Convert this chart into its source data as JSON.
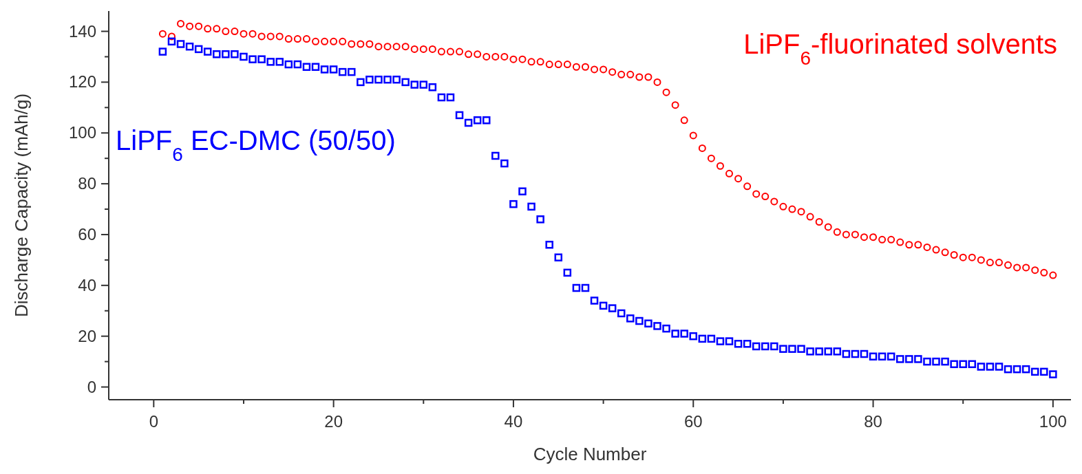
{
  "chart_data": {
    "type": "scatter",
    "xlabel": "Cycle Number",
    "ylabel": "Discharge Capacity (mAh/g)",
    "x": [
      1,
      2,
      3,
      4,
      5,
      6,
      7,
      8,
      9,
      10,
      11,
      12,
      13,
      14,
      15,
      16,
      17,
      18,
      19,
      20,
      21,
      22,
      23,
      24,
      25,
      26,
      27,
      28,
      29,
      30,
      31,
      32,
      33,
      34,
      35,
      36,
      37,
      38,
      39,
      40,
      41,
      42,
      43,
      44,
      45,
      46,
      47,
      48,
      49,
      50,
      51,
      52,
      53,
      54,
      55,
      56,
      57,
      58,
      59,
      60,
      61,
      62,
      63,
      64,
      65,
      66,
      67,
      68,
      69,
      70,
      71,
      72,
      73,
      74,
      75,
      76,
      77,
      78,
      79,
      80,
      81,
      82,
      83,
      84,
      85,
      86,
      87,
      88,
      89,
      90,
      91,
      92,
      93,
      94,
      95,
      96,
      97,
      98,
      99,
      100
    ],
    "xlim": [
      -5,
      102
    ],
    "ylim": [
      -5,
      148
    ],
    "xticks": [
      0,
      {
        "value": 10,
        "label": null
      },
      20,
      {
        "value": 30,
        "label": null
      },
      40,
      {
        "value": 50,
        "label": null
      },
      60,
      {
        "value": 70,
        "label": null
      },
      80,
      {
        "value": 90,
        "label": null
      },
      100
    ],
    "yticks": [
      0,
      {
        "value": 10,
        "label": null
      },
      20,
      {
        "value": 30,
        "label": null
      },
      40,
      {
        "value": 50,
        "label": null
      },
      60,
      {
        "value": 70,
        "label": null
      },
      80,
      {
        "value": 90,
        "label": null
      },
      100,
      {
        "value": 110,
        "label": null
      },
      120,
      {
        "value": 130,
        "label": null
      },
      140
    ],
    "grid": false,
    "series": [
      {
        "name": "LiPF$_{6}$-fluorinated solvents",
        "color": "#ff0000",
        "marker": "circle",
        "values": [
          139,
          138,
          143,
          142,
          142,
          141,
          141,
          140,
          140,
          139,
          139,
          138,
          138,
          138,
          137,
          137,
          137,
          136,
          136,
          136,
          136,
          135,
          135,
          135,
          134,
          134,
          134,
          134,
          133,
          133,
          133,
          132,
          132,
          132,
          131,
          131,
          130,
          130,
          130,
          129,
          129,
          128,
          128,
          127,
          127,
          127,
          126,
          126,
          125,
          125,
          124,
          123,
          123,
          122,
          122,
          120,
          116,
          111,
          105,
          99,
          94,
          90,
          87,
          84,
          82,
          79,
          76,
          75,
          73,
          71,
          70,
          69,
          67,
          65,
          63,
          61,
          60,
          60,
          59,
          59,
          58,
          58,
          57,
          56,
          56,
          55,
          54,
          53,
          52,
          51,
          51,
          50,
          49,
          49,
          48,
          47,
          47,
          46,
          45,
          44
        ]
      },
      {
        "name": "LiPF$_{6}$ EC-DMC (50/50)",
        "color": "#0000ff",
        "marker": "square",
        "values": [
          132,
          136,
          135,
          134,
          133,
          132,
          131,
          131,
          131,
          130,
          129,
          129,
          128,
          128,
          127,
          127,
          126,
          126,
          125,
          125,
          124,
          124,
          120,
          121,
          121,
          121,
          121,
          120,
          119,
          119,
          118,
          114,
          114,
          107,
          104,
          105,
          105,
          91,
          88,
          72,
          77,
          71,
          66,
          56,
          51,
          45,
          39,
          39,
          34,
          32,
          31,
          29,
          27,
          26,
          25,
          24,
          23,
          21,
          21,
          20,
          19,
          19,
          18,
          18,
          17,
          17,
          16,
          16,
          16,
          15,
          15,
          15,
          14,
          14,
          14,
          14,
          13,
          13,
          13,
          12,
          12,
          12,
          11,
          11,
          11,
          10,
          10,
          10,
          9,
          9,
          9,
          8,
          8,
          8,
          7,
          7,
          7,
          6,
          6,
          5
        ]
      }
    ]
  }
}
